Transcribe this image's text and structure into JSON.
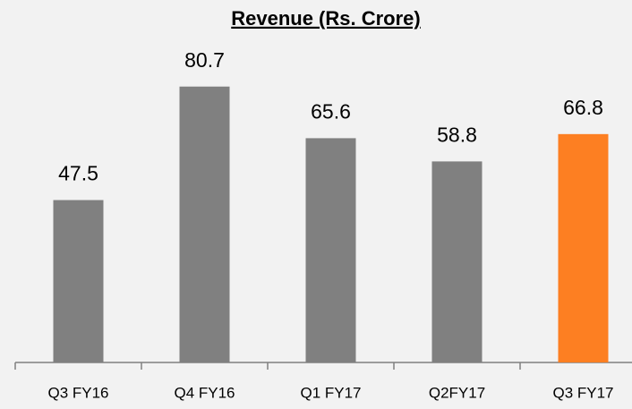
{
  "chart_data": {
    "type": "bar",
    "title": "Revenue (Rs. Crore)",
    "categories": [
      "Q3 FY16",
      "Q4 FY16",
      "Q1 FY17",
      "Q2FY17",
      "Q3 FY17"
    ],
    "values": [
      47.5,
      80.7,
      65.6,
      58.8,
      66.8
    ],
    "colors": [
      "#808080",
      "#808080",
      "#808080",
      "#808080",
      "#fd7f22"
    ]
  }
}
